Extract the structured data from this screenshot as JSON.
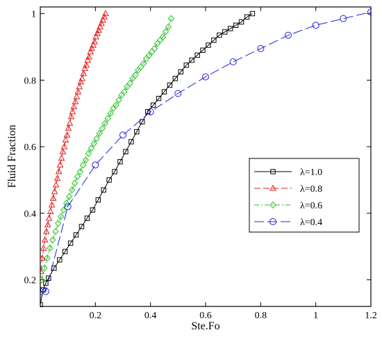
{
  "chart_data": {
    "type": "line",
    "title": "",
    "xlabel": "Ste.Fo",
    "ylabel": "Fluid Fraction",
    "xlim": [
      0,
      1.2
    ],
    "ylim": [
      0.12,
      1.02
    ],
    "x_ticks": [
      0.2,
      0.4,
      0.6,
      0.8,
      1,
      1.2
    ],
    "x_tick_labels": [
      "0.2",
      "0.4",
      "0.6",
      "0.8",
      "1",
      "1.2"
    ],
    "y_ticks": [
      0.2,
      0.4,
      0.6,
      0.8,
      1
    ],
    "y_tick_labels": [
      "0.2",
      "0.4",
      "0.6",
      "0.8",
      "1"
    ],
    "grid": false,
    "legend_position": "middle-right",
    "series": [
      {
        "name": "λ=1.0",
        "color": "#000000",
        "line_style": "solid",
        "marker": "square",
        "x": [
          0,
          0.01,
          0.02,
          0.03,
          0.05,
          0.07,
          0.09,
          0.11,
          0.13,
          0.15,
          0.17,
          0.19,
          0.21,
          0.23,
          0.25,
          0.27,
          0.29,
          0.31,
          0.33,
          0.35,
          0.37,
          0.39,
          0.41,
          0.43,
          0.45,
          0.47,
          0.49,
          0.51,
          0.53,
          0.55,
          0.57,
          0.59,
          0.61,
          0.63,
          0.65,
          0.67,
          0.69,
          0.71,
          0.73,
          0.75,
          0.77
        ],
        "y": [
          0.125,
          0.17,
          0.19,
          0.205,
          0.235,
          0.26,
          0.285,
          0.31,
          0.335,
          0.36,
          0.385,
          0.41,
          0.44,
          0.47,
          0.5,
          0.525,
          0.555,
          0.585,
          0.615,
          0.645,
          0.675,
          0.705,
          0.725,
          0.745,
          0.765,
          0.785,
          0.805,
          0.825,
          0.845,
          0.86,
          0.875,
          0.89,
          0.905,
          0.92,
          0.935,
          0.945,
          0.955,
          0.965,
          0.975,
          0.99,
          1.0
        ]
      },
      {
        "name": "λ=0.8",
        "color": "#e02020",
        "line_style": "dash",
        "marker": "triangle",
        "x": [
          0.002,
          0.007,
          0.012,
          0.017,
          0.022,
          0.027,
          0.032,
          0.037,
          0.042,
          0.047,
          0.052,
          0.057,
          0.062,
          0.067,
          0.072,
          0.077,
          0.082,
          0.087,
          0.092,
          0.097,
          0.102,
          0.107,
          0.112,
          0.117,
          0.122,
          0.127,
          0.132,
          0.137,
          0.142,
          0.147,
          0.152,
          0.157,
          0.162,
          0.167,
          0.172,
          0.177,
          0.182,
          0.187,
          0.192,
          0.197,
          0.202,
          0.207,
          0.212,
          0.217,
          0.222,
          0.227,
          0.232,
          0.237
        ],
        "y": [
          0.225,
          0.265,
          0.295,
          0.32,
          0.345,
          0.365,
          0.385,
          0.405,
          0.425,
          0.445,
          0.465,
          0.485,
          0.505,
          0.525,
          0.545,
          0.565,
          0.585,
          0.6,
          0.62,
          0.635,
          0.655,
          0.67,
          0.69,
          0.705,
          0.72,
          0.735,
          0.75,
          0.765,
          0.78,
          0.795,
          0.805,
          0.82,
          0.835,
          0.845,
          0.86,
          0.87,
          0.885,
          0.895,
          0.905,
          0.915,
          0.93,
          0.94,
          0.95,
          0.96,
          0.97,
          0.98,
          0.99,
          1.0
        ]
      },
      {
        "name": "λ=0.6",
        "color": "#22c022",
        "line_style": "dashdot",
        "marker": "diamond",
        "x": [
          0.005,
          0.015,
          0.025,
          0.035,
          0.045,
          0.055,
          0.065,
          0.075,
          0.085,
          0.095,
          0.105,
          0.115,
          0.125,
          0.135,
          0.145,
          0.155,
          0.165,
          0.175,
          0.185,
          0.195,
          0.205,
          0.215,
          0.225,
          0.235,
          0.245,
          0.255,
          0.265,
          0.275,
          0.285,
          0.295,
          0.305,
          0.315,
          0.325,
          0.335,
          0.345,
          0.355,
          0.365,
          0.375,
          0.385,
          0.395,
          0.405,
          0.415,
          0.425,
          0.435,
          0.445,
          0.455,
          0.465,
          0.475
        ],
        "y": [
          0.2,
          0.235,
          0.265,
          0.295,
          0.32,
          0.345,
          0.37,
          0.39,
          0.41,
          0.43,
          0.45,
          0.47,
          0.49,
          0.51,
          0.525,
          0.545,
          0.56,
          0.58,
          0.595,
          0.61,
          0.625,
          0.64,
          0.655,
          0.67,
          0.685,
          0.7,
          0.715,
          0.725,
          0.74,
          0.755,
          0.765,
          0.78,
          0.79,
          0.805,
          0.815,
          0.83,
          0.84,
          0.85,
          0.865,
          0.875,
          0.885,
          0.895,
          0.91,
          0.92,
          0.93,
          0.945,
          0.96,
          0.985
        ]
      },
      {
        "name": "λ=0.4",
        "color": "#2020e0",
        "line_style": "longdash",
        "marker": "circle",
        "x": [
          0,
          0.02,
          0.1,
          0.2,
          0.3,
          0.4,
          0.5,
          0.6,
          0.7,
          0.8,
          0.9,
          1.0,
          1.1,
          1.2
        ],
        "y": [
          0.165,
          0.165,
          0.42,
          0.545,
          0.635,
          0.705,
          0.76,
          0.81,
          0.855,
          0.895,
          0.935,
          0.965,
          0.985,
          1.005
        ]
      }
    ]
  }
}
